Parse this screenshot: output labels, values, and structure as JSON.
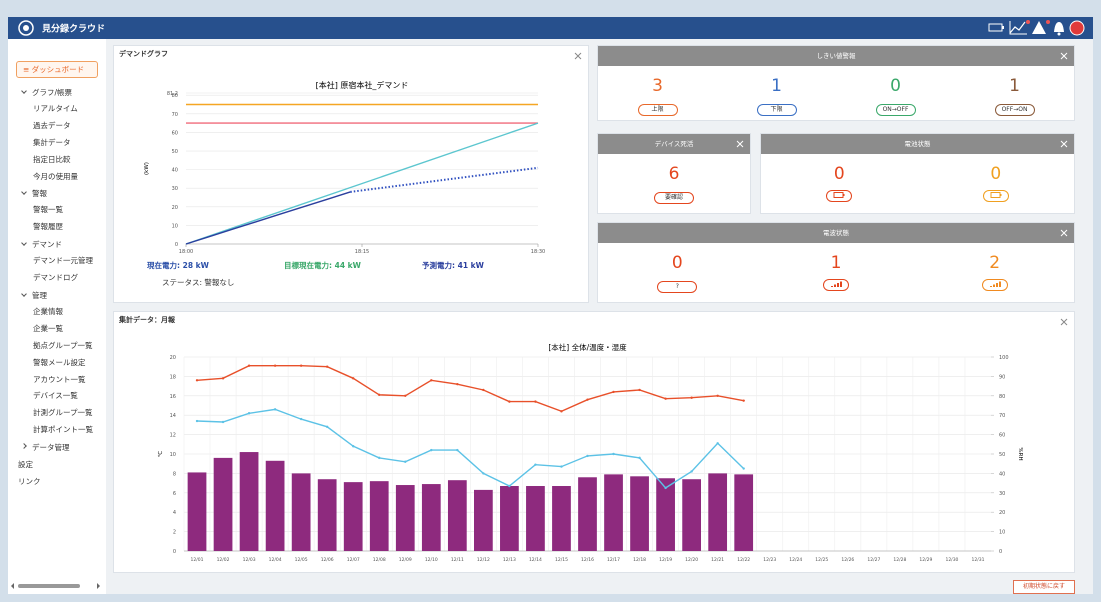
{
  "header": {
    "app_name": "見分録クラウド"
  },
  "sidebar": {
    "active": "ダッシュボード",
    "groups": [
      {
        "title": "グラフ/帳票",
        "items": [
          "リアルタイム",
          "過去データ",
          "集計データ",
          "指定日比較",
          "今月の使用量"
        ]
      },
      {
        "title": "警報",
        "items": [
          "警報一覧",
          "警報履歴"
        ]
      },
      {
        "title": "デマンド",
        "items": [
          "デマンド一元管理",
          "デマンドログ"
        ]
      },
      {
        "title": "管理",
        "items": [
          "企業情報",
          "企業一覧",
          "拠点グループ一覧",
          "警報メール設定",
          "アカウント一覧",
          "デバイス一覧",
          "計測グループ一覧",
          "計算ポイント一覧"
        ]
      },
      {
        "title": "データ管理",
        "items": []
      }
    ],
    "links": [
      "設定",
      "リンク"
    ]
  },
  "demand_panel": {
    "header": "デマンドグラフ",
    "chart": {
      "type": "line",
      "title": "[本社] 原宿本社_デマンド",
      "y_label": "(kW)",
      "xlim": [
        0,
        30
      ],
      "xticks": [
        {
          "value": 0,
          "label": "18:00"
        },
        {
          "value": 15,
          "label": "18:15"
        },
        {
          "value": 30,
          "label": "18:30"
        }
      ],
      "ylim": [
        0,
        81.2
      ],
      "yticks": [
        0,
        10,
        20,
        30,
        40,
        50,
        60,
        70,
        80,
        81.2
      ],
      "grid": true,
      "series": [
        {
          "color": "#f5a623",
          "x": [
            0,
            30
          ],
          "values": [
            75,
            75
          ]
        },
        {
          "color": "#f06a7a",
          "x": [
            0,
            30
          ],
          "values": [
            65,
            65
          ]
        },
        {
          "color": "#5cc6cf",
          "x": [
            0,
            30
          ],
          "values": [
            0,
            65
          ]
        },
        {
          "color": "#2b3f9e",
          "x": [
            0,
            2,
            4,
            6,
            8,
            10,
            12,
            14
          ],
          "values": [
            0,
            4,
            8,
            12,
            16,
            20,
            24,
            28
          ]
        },
        {
          "color": "#3050c0",
          "dash": true,
          "x": [
            14,
            30
          ],
          "values": [
            28,
            41
          ]
        }
      ]
    },
    "stats": [
      {
        "text": "現在電力: 28 kW",
        "color": "#2b4fa8"
      },
      {
        "text": "目標現在電力: 44 kW",
        "color": "#3aa86a"
      },
      {
        "text": "予測電力: 41 kW",
        "color": "#2b3f9e"
      }
    ],
    "status": "ステータス: 警報なし"
  },
  "threshold_panel": {
    "header": "しきい値警報",
    "items": [
      {
        "count": 3,
        "label": "上限",
        "color": "#e8682a"
      },
      {
        "count": 1,
        "label": "下限",
        "color": "#3a6fc4"
      },
      {
        "count": 0,
        "label": "ON→OFF",
        "color": "#3aa86a"
      },
      {
        "count": 1,
        "label": "OFF→ON",
        "color": "#8a5a3a"
      }
    ]
  },
  "device_panel": {
    "header": "デバイス死活",
    "count": 6,
    "label": "要確認",
    "color": "#e4461e"
  },
  "battery_panel": {
    "header": "電池状態",
    "items": [
      {
        "count": 0,
        "color": "#e4461e"
      },
      {
        "count": 0,
        "color": "#f0a020"
      }
    ]
  },
  "radio_panel": {
    "header": "電波状態",
    "items": [
      {
        "count": 0,
        "label": "?",
        "color": "#e4461e"
      },
      {
        "count": 1,
        "color": "#e4461e"
      },
      {
        "count": 2,
        "color": "#f08a20"
      }
    ]
  },
  "monthly_panel": {
    "header": "集計データ：月報",
    "chart": {
      "type": "bar",
      "title": "[本社] 全体/温度・湿度",
      "y_label": "℃",
      "y2_label": "%RH",
      "categories": [
        "12/01",
        "12/02",
        "12/03",
        "12/04",
        "12/05",
        "12/06",
        "12/07",
        "12/08",
        "12/09",
        "12/10",
        "12/11",
        "12/12",
        "12/13",
        "12/14",
        "12/15",
        "12/16",
        "12/17",
        "12/18",
        "12/19",
        "12/20",
        "12/21",
        "12/22",
        "12/23",
        "12/24",
        "12/25",
        "12/26",
        "12/27",
        "12/28",
        "12/29",
        "12/30",
        "12/31"
      ],
      "ylim": [
        0,
        20
      ],
      "yticks": [
        0,
        2,
        4,
        6,
        8,
        10,
        12,
        14,
        16,
        18,
        20
      ],
      "y2lim": [
        0,
        100
      ],
      "y2ticks": [
        0,
        10,
        20,
        30,
        40,
        50,
        60,
        70,
        80,
        90,
        100
      ],
      "grid": true,
      "series": [
        {
          "type": "bar",
          "color": "#8e2a7e",
          "values": [
            8.1,
            9.6,
            10.2,
            9.3,
            8.0,
            7.4,
            7.1,
            7.2,
            6.8,
            6.9,
            7.3,
            6.3,
            6.7,
            6.7,
            6.7,
            7.6,
            7.9,
            7.7,
            7.5,
            7.4,
            8.0,
            7.9,
            null,
            null,
            null,
            null,
            null,
            null,
            null,
            null,
            null
          ]
        },
        {
          "type": "line",
          "color": "#5cc2e6",
          "values": [
            13.4,
            13.3,
            14.2,
            14.6,
            13.6,
            12.8,
            10.8,
            9.6,
            9.2,
            10.4,
            10.4,
            8.0,
            6.7,
            8.9,
            8.7,
            9.8,
            10.0,
            9.6,
            6.5,
            8.2,
            11.1,
            8.5,
            null,
            null,
            null,
            null,
            null,
            null,
            null,
            null,
            null
          ]
        },
        {
          "type": "line",
          "axis": "y2",
          "color": "#e8502a",
          "values": [
            88,
            89,
            95.5,
            95.5,
            95.5,
            95,
            89,
            80.5,
            80,
            88,
            86,
            83,
            77,
            77,
            72,
            78,
            82,
            83,
            78.5,
            79,
            80,
            77.5,
            null,
            null,
            null,
            null,
            null,
            null,
            null,
            null,
            null
          ]
        }
      ]
    }
  },
  "reset_button": "初期状態に戻す"
}
